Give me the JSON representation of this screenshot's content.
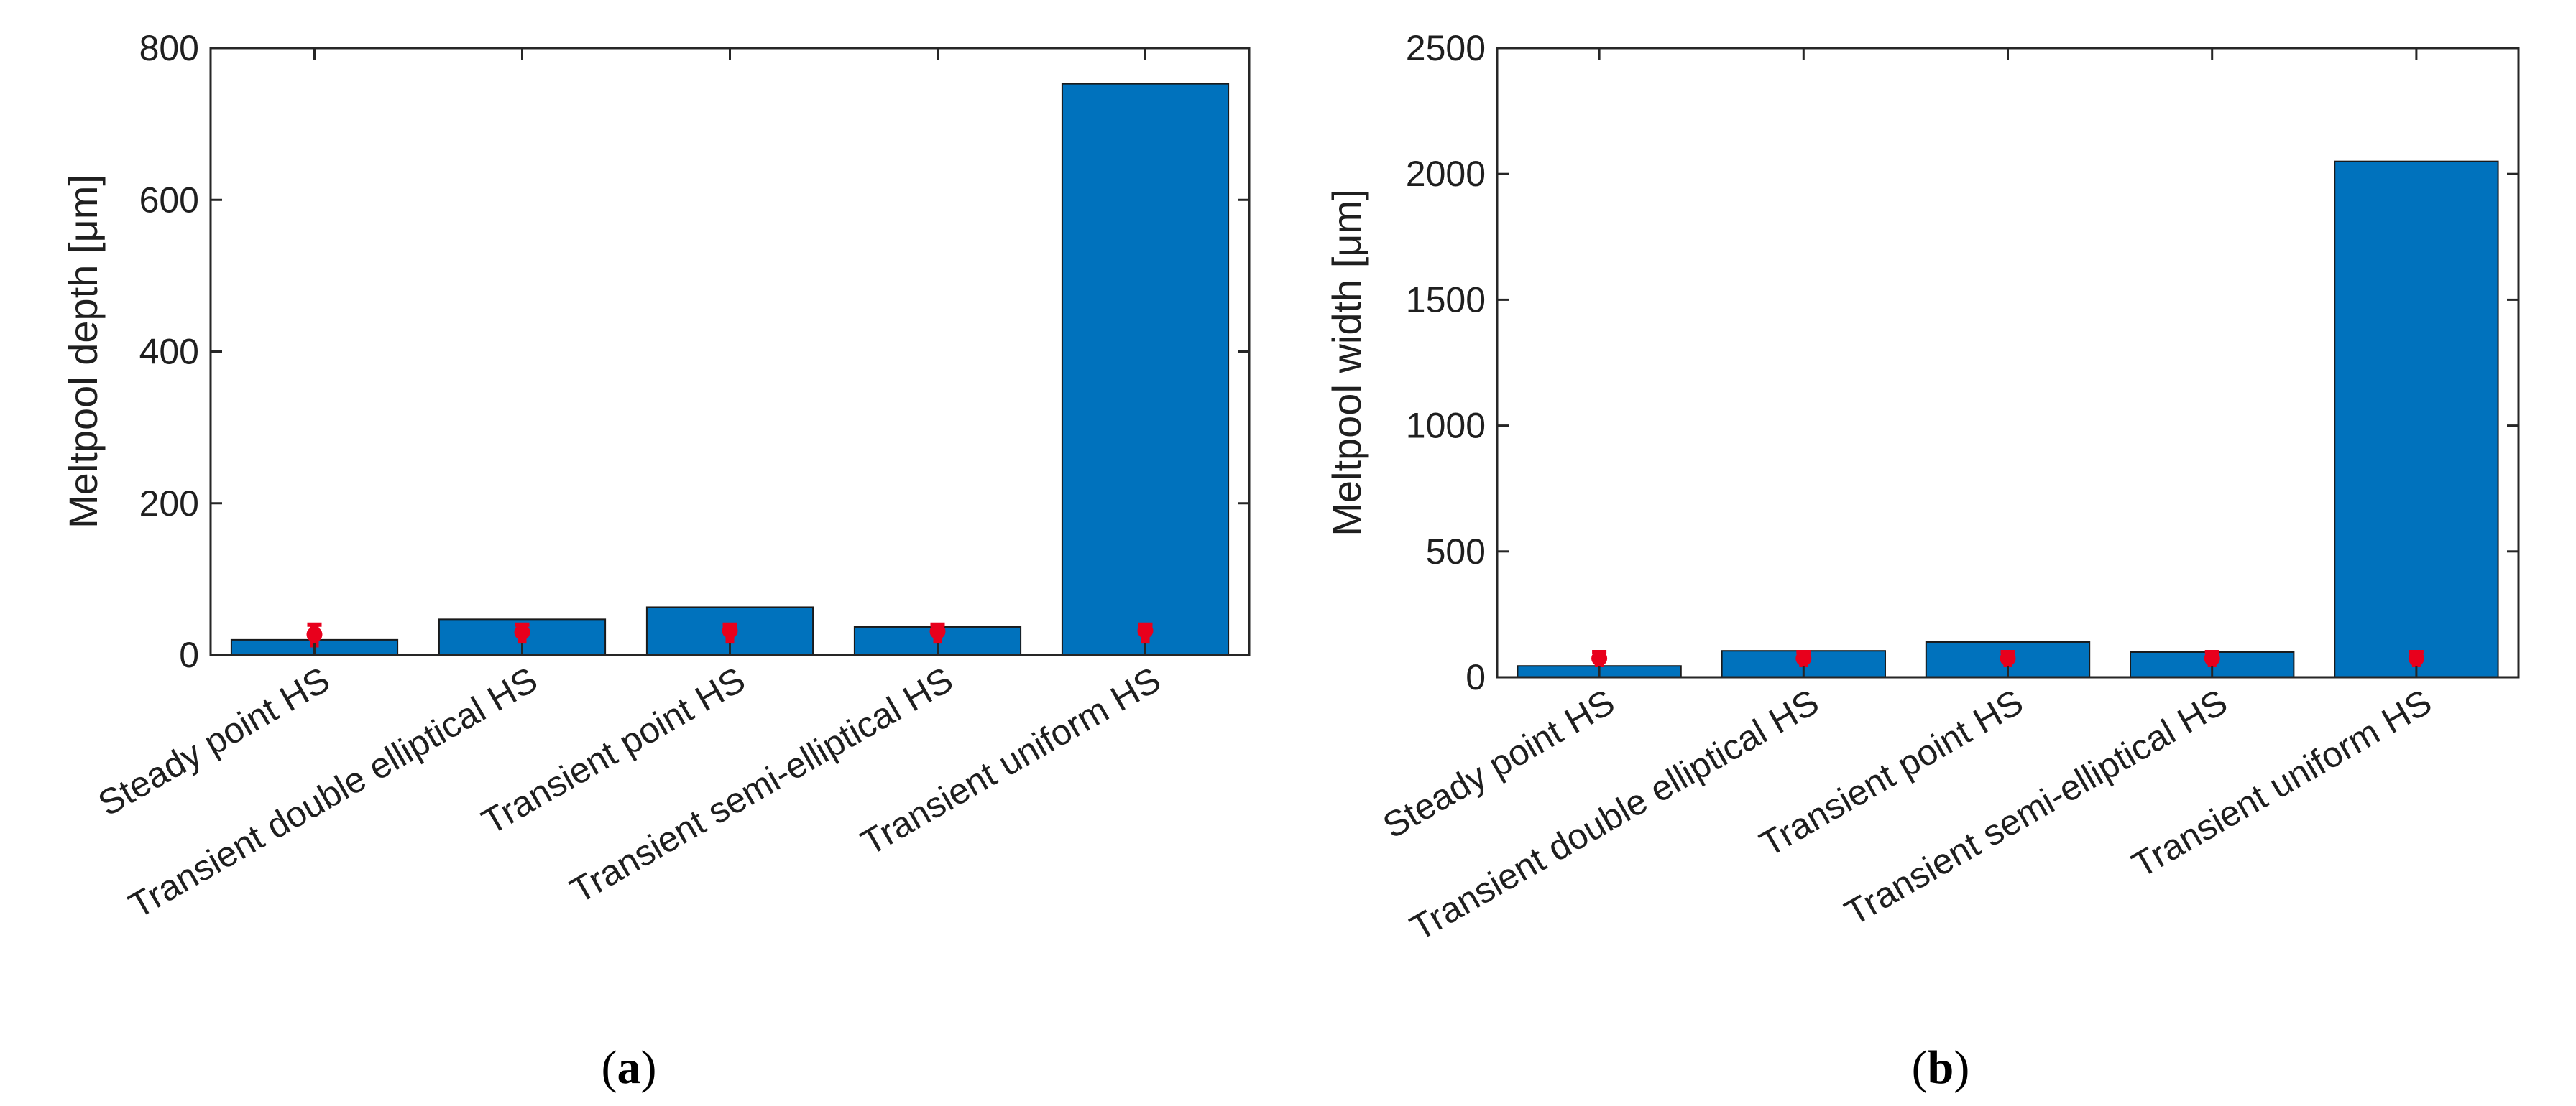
{
  "colors": {
    "bar": "#0072BD",
    "marker": "#E8001C",
    "axis": "#262626"
  },
  "chart_data": [
    {
      "type": "bar",
      "panel_label": [
        "(",
        "a",
        ")"
      ],
      "categories": [
        "Steady point HS",
        "Transient double elliptical HS",
        "Transient point HS",
        "Transient semi-elliptical HS",
        "Transient uniform HS"
      ],
      "values": [
        20,
        47,
        63,
        37,
        753
      ],
      "markers": [
        {
          "center": 27,
          "low": 10,
          "high": 40
        },
        {
          "center": 30,
          "low": 15,
          "high": 40
        },
        {
          "center": 32,
          "low": 15,
          "high": 40
        },
        {
          "center": 31,
          "low": 15,
          "high": 40
        },
        {
          "center": 32,
          "low": 15,
          "high": 40
        }
      ],
      "xlabel": "",
      "ylabel": "Meltpool depth [μm]",
      "ylim": [
        0,
        800
      ],
      "yticks": [
        "0",
        "200",
        "400",
        "600",
        "800"
      ],
      "grid": false
    },
    {
      "type": "bar",
      "panel_label": [
        "(",
        "b",
        ")"
      ],
      "categories": [
        "Steady point HS",
        "Transient double elliptical HS",
        "Transient point HS",
        "Transient semi-elliptical HS",
        "Transient uniform HS"
      ],
      "values": [
        45,
        105,
        140,
        100,
        2050
      ],
      "markers": [
        {
          "center": 75,
          "low": 40,
          "high": 100
        },
        {
          "center": 75,
          "low": 40,
          "high": 100
        },
        {
          "center": 75,
          "low": 40,
          "high": 100
        },
        {
          "center": 75,
          "low": 40,
          "high": 100
        },
        {
          "center": 75,
          "low": 40,
          "high": 100
        }
      ],
      "xlabel": "",
      "ylabel": "Meltpool width [μm]",
      "ylim": [
        0,
        2500
      ],
      "yticks": [
        "0",
        "500",
        "1000",
        "1500",
        "2000",
        "2500"
      ],
      "grid": false
    }
  ]
}
